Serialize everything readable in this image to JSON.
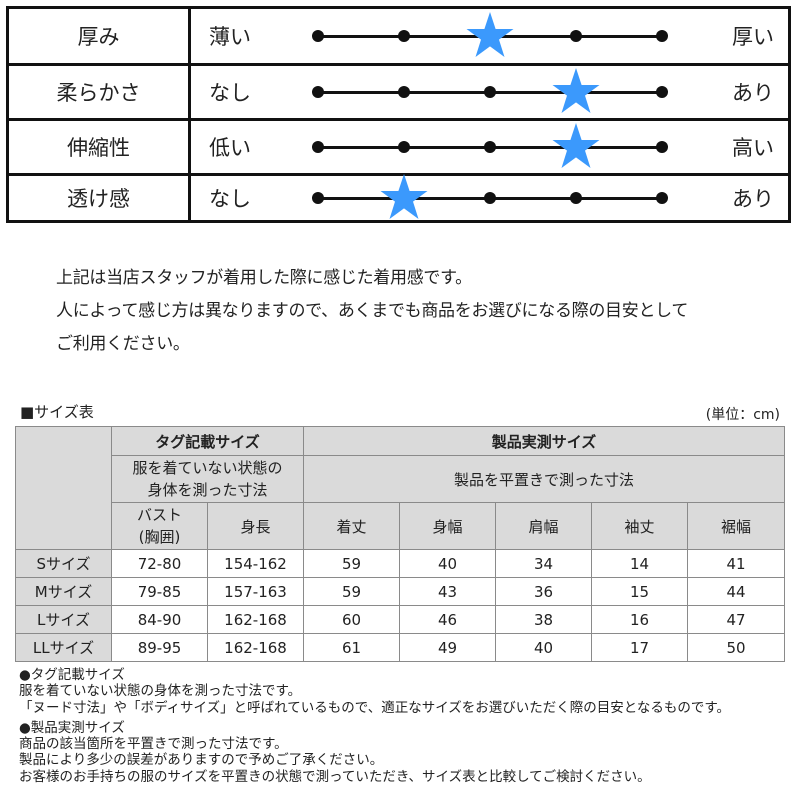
{
  "feel_chart": {
    "scale_points": 5,
    "star_color": "#3b99fc",
    "rows": [
      {
        "label": "厚み",
        "low": "薄い",
        "high": "厚い",
        "value": 3
      },
      {
        "label": "柔らかさ",
        "low": "なし",
        "high": "あり",
        "value": 4
      },
      {
        "label": "伸縮性",
        "low": "低い",
        "high": "高い",
        "value": 4
      },
      {
        "label": "透け感",
        "low": "なし",
        "high": "あり",
        "value": 2
      }
    ]
  },
  "disclaimer": {
    "line1": "上記は当店スタッフが着用した際に感じた着用感です。",
    "line2": "人によって感じ方は異なりますので、あくまでも商品をお選びになる際の目安として",
    "line3": "ご利用ください。"
  },
  "size_table": {
    "title": "■サイズ表",
    "unit": "(単位：cm)",
    "group_tag": {
      "label": "タグ記載サイズ",
      "description": "服を着ていない状態の身体を測った寸法",
      "description_line1": "服を着ていない状態の",
      "description_line2": "身体を測った寸法"
    },
    "group_actual": {
      "label": "製品実測サイズ",
      "description": "製品を平置きで測った寸法"
    },
    "columns": {
      "bust_line1": "バスト",
      "bust_line2": "(胸囲)",
      "height": "身長",
      "length": "着丈",
      "body_width": "身幅",
      "shoulder": "肩幅",
      "sleeve": "袖丈",
      "hem": "裾幅"
    },
    "rows": [
      {
        "size": "Sサイズ",
        "bust": "72-80",
        "height": "154-162",
        "length": "59",
        "body_width": "40",
        "shoulder": "34",
        "sleeve": "14",
        "hem": "41"
      },
      {
        "size": "Mサイズ",
        "bust": "79-85",
        "height": "157-163",
        "length": "59",
        "body_width": "43",
        "shoulder": "36",
        "sleeve": "15",
        "hem": "44"
      },
      {
        "size": "Lサイズ",
        "bust": "84-90",
        "height": "162-168",
        "length": "60",
        "body_width": "46",
        "shoulder": "38",
        "sleeve": "16",
        "hem": "47"
      },
      {
        "size": "LLサイズ",
        "bust": "89-95",
        "height": "162-168",
        "length": "61",
        "body_width": "49",
        "shoulder": "40",
        "sleeve": "17",
        "hem": "50"
      }
    ]
  },
  "footnotes": {
    "tag_heading": "●タグ記載サイズ",
    "tag_line1": "服を着ていない状態の身体を測った寸法です。",
    "tag_line2": "「ヌード寸法」や「ボディサイズ」と呼ばれているもので、適正なサイズをお選びいただく際の目安となるものです。",
    "actual_heading": "●製品実測サイズ",
    "actual_line1": "商品の該当箇所を平置きで測った寸法です。",
    "actual_line2": "製品により多少の誤差がありますので予めご了承ください。",
    "actual_line3": "お客様のお手持ちの服のサイズを平置きの状態で測っていただき、サイズ表と比較してご検討ください。"
  }
}
